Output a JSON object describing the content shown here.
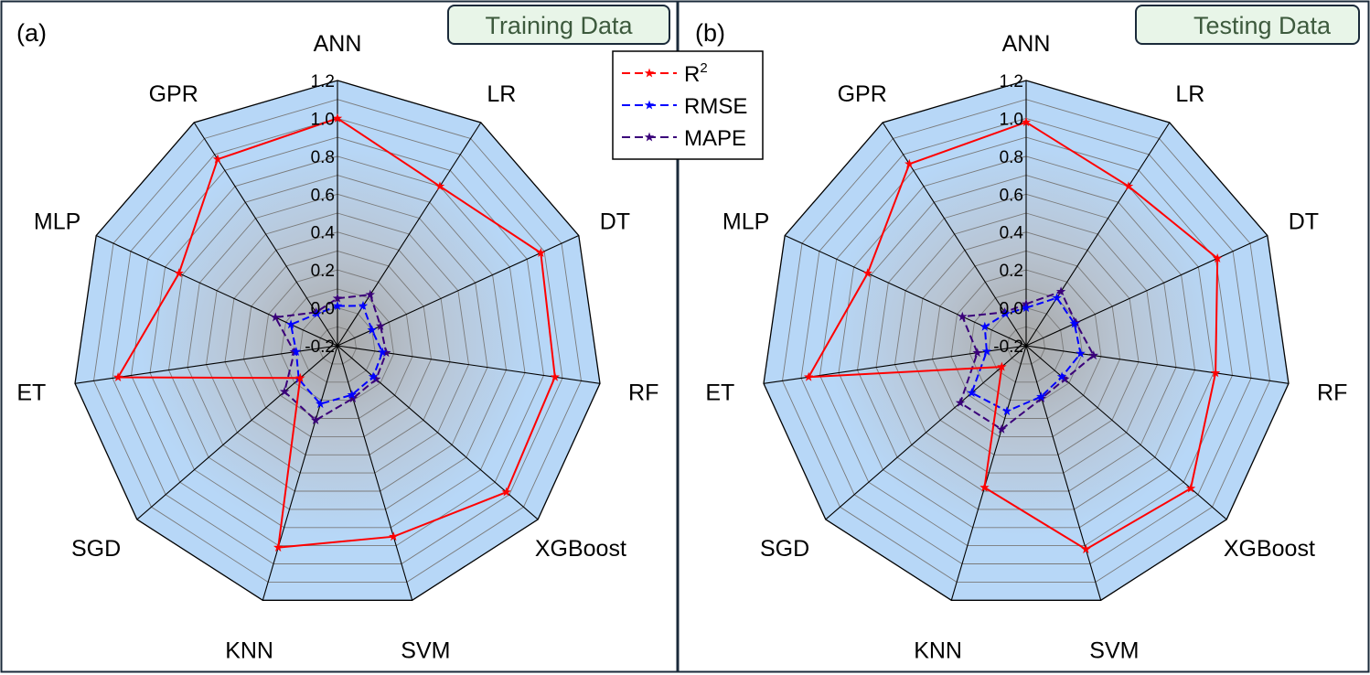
{
  "chart_data": [
    {
      "type": "radar",
      "panel_label": "(a)",
      "title": "Training Data",
      "axes": [
        "ANN",
        "LR",
        "DT",
        "RF",
        "XGBoost",
        "SVM",
        "KNN",
        "SGD",
        "ET",
        "MLP",
        "GPR"
      ],
      "rlim": [
        -0.2,
        1.2
      ],
      "ticks": [
        "-0.2",
        "0.0",
        "0.2",
        "0.4",
        "0.6",
        "0.8",
        "1.0",
        "1.2"
      ],
      "tick_values": [
        -0.2,
        0.0,
        0.2,
        0.4,
        0.6,
        0.8,
        1.0,
        1.2
      ],
      "series": [
        {
          "name": "R²",
          "color": "#ff0000",
          "values": [
            1.0,
            0.8,
            0.98,
            0.96,
            0.98,
            0.85,
            0.91,
            0.06,
            0.97,
            0.72,
            0.97
          ]
        },
        {
          "name": "RMSE",
          "color": "#0000ff",
          "values": [
            0.01,
            0.05,
            0.0,
            0.04,
            0.05,
            0.07,
            0.12,
            0.07,
            0.02,
            0.07,
            0.0
          ]
        },
        {
          "name": "MAPE",
          "color": "#3a007a",
          "values": [
            0.05,
            0.12,
            0.05,
            0.06,
            0.07,
            0.09,
            0.21,
            0.17,
            0.03,
            0.16,
            0.01
          ]
        }
      ]
    },
    {
      "type": "radar",
      "panel_label": "(b)",
      "title": "Testing Data",
      "axes": [
        "ANN",
        "LR",
        "DT",
        "RF",
        "XGBoost",
        "SVM",
        "KNN",
        "SGD",
        "ET",
        "MLP",
        "GPR"
      ],
      "rlim": [
        -0.2,
        1.2
      ],
      "ticks": [
        "-0.2",
        "0.0",
        "0.2",
        "0.4",
        "0.6",
        "0.8",
        "1.0",
        "1.2"
      ],
      "tick_values": [
        -0.2,
        0.0,
        0.2,
        0.4,
        0.6,
        0.8,
        1.0,
        1.2
      ],
      "series": [
        {
          "name": "R²",
          "color": "#ff0000",
          "values": [
            0.98,
            0.8,
            0.91,
            0.81,
            0.95,
            0.92,
            0.58,
            -0.03,
            0.96,
            0.72,
            0.94
          ]
        },
        {
          "name": "RMSE",
          "color": "#0000ff",
          "values": [
            0.0,
            0.1,
            0.08,
            0.09,
            0.05,
            0.08,
            0.16,
            0.18,
            0.01,
            0.04,
            0.0
          ]
        },
        {
          "name": "MAPE",
          "color": "#3a007a",
          "values": [
            0.02,
            0.14,
            0.09,
            0.16,
            0.07,
            0.09,
            0.26,
            0.26,
            0.06,
            0.17,
            0.01
          ]
        }
      ]
    }
  ],
  "legend": {
    "items": [
      {
        "base": "R",
        "sup": "2",
        "color": "#ff0000"
      },
      {
        "base": "RMSE",
        "sup": "",
        "color": "#0000ff"
      },
      {
        "base": "MAPE",
        "sup": "",
        "color": "#3a007a"
      }
    ]
  },
  "colors": {
    "fill_edge": "#b7d7f7",
    "fill_center": "#a8a8a8",
    "spoke": "#000000",
    "grid": "#777777",
    "title_box_bg": "#e8f5e8",
    "title_text": "#3d5a3d"
  }
}
